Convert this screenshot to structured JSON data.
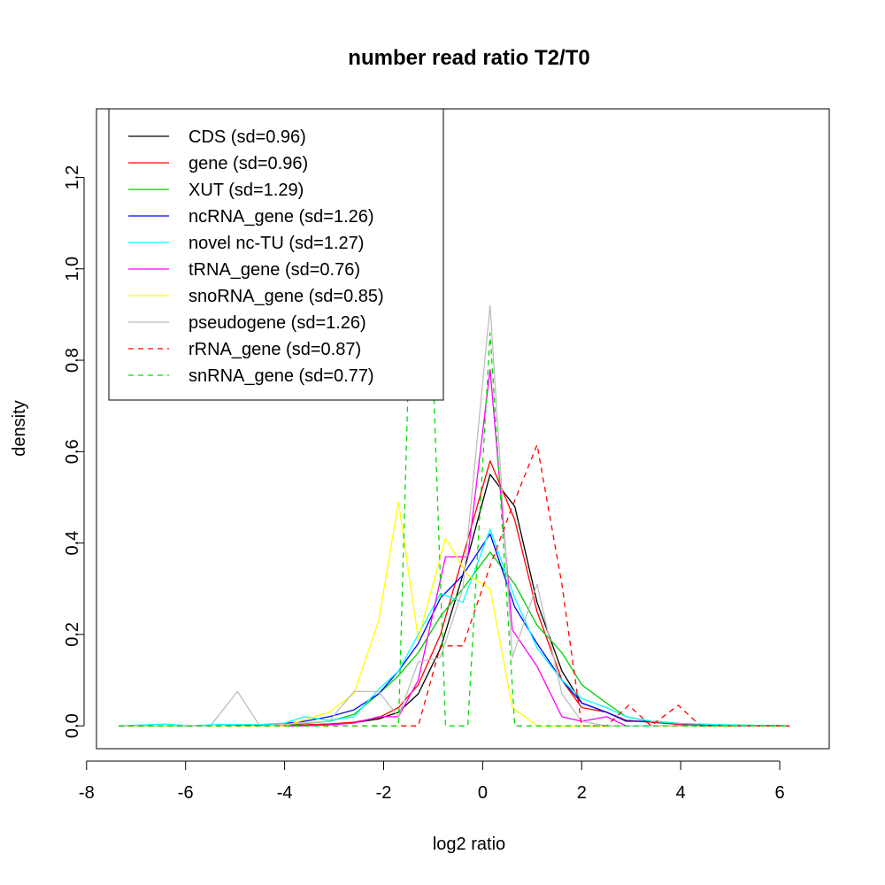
{
  "chart_data": {
    "type": "line",
    "title": "number read ratio T2/T0",
    "xlabel": "log2 ratio",
    "ylabel": "density",
    "xlim": [
      -7.8,
      7
    ],
    "ylim": [
      -0.05,
      1.35
    ],
    "xticks": [
      -8,
      -6,
      -4,
      -2,
      0,
      2,
      4,
      6
    ],
    "yticks": [
      0.0,
      0.2,
      0.4,
      0.6,
      0.8,
      1.0,
      1.2
    ],
    "xtick_labels": [
      "-8",
      "-6",
      "-4",
      "-2",
      "0",
      "2",
      "4",
      "6"
    ],
    "ytick_labels": [
      "0.0",
      "0.2",
      "0.4",
      "0.6",
      "0.8",
      "1.0",
      "1.2"
    ],
    "grid": false,
    "legend_position": "top-left",
    "series": [
      {
        "name": "CDS (sd=0.96)",
        "color": "#000000",
        "dash": "solid",
        "x": [
          -7.35,
          -5.4,
          -4.5,
          -3.6,
          -3.1,
          -2.6,
          -2.1,
          -1.7,
          -1.3,
          -0.85,
          -0.4,
          0.15,
          0.65,
          1.1,
          1.6,
          2.0,
          2.5,
          2.9,
          3.4,
          4.0,
          5.0,
          6.2
        ],
        "y": [
          0,
          0,
          0,
          0.002,
          0.004,
          0.007,
          0.015,
          0.03,
          0.07,
          0.17,
          0.33,
          0.55,
          0.48,
          0.27,
          0.12,
          0.05,
          0.03,
          0.012,
          0.008,
          0.003,
          0.001,
          0
        ]
      },
      {
        "name": "gene (sd=0.96)",
        "color": "#ff0000",
        "dash": "solid",
        "x": [
          -7.35,
          -5.4,
          -4.5,
          -3.6,
          -3.1,
          -2.6,
          -2.1,
          -1.7,
          -1.3,
          -0.85,
          -0.4,
          0.15,
          0.65,
          1.1,
          1.6,
          2.0,
          2.5,
          2.9,
          3.4,
          4.0,
          5.0,
          6.2
        ],
        "y": [
          0,
          0,
          0,
          0.002,
          0.004,
          0.008,
          0.018,
          0.04,
          0.09,
          0.2,
          0.37,
          0.58,
          0.45,
          0.25,
          0.1,
          0.04,
          0.03,
          0.012,
          0.008,
          0.003,
          0.001,
          0
        ]
      },
      {
        "name": "XUT (sd=1.29)",
        "color": "#00cc00",
        "dash": "solid",
        "x": [
          -7.35,
          -5.4,
          -4.5,
          -4.0,
          -3.6,
          -3.1,
          -2.6,
          -2.1,
          -1.7,
          -1.3,
          -0.85,
          -0.4,
          0.15,
          0.65,
          1.1,
          1.6,
          2.0,
          2.5,
          2.9,
          3.4,
          4.0,
          5.0,
          6.2
        ],
        "y": [
          0,
          0,
          0.002,
          0.003,
          0.005,
          0.01,
          0.025,
          0.07,
          0.11,
          0.16,
          0.24,
          0.3,
          0.38,
          0.31,
          0.22,
          0.16,
          0.09,
          0.05,
          0.02,
          0.01,
          0.005,
          0.002,
          0
        ]
      },
      {
        "name": "ncRNA_gene (sd=1.26)",
        "color": "#0000ff",
        "dash": "solid",
        "x": [
          -7.35,
          -5.4,
          -4.5,
          -4.0,
          -3.6,
          -3.1,
          -2.6,
          -2.1,
          -1.7,
          -1.3,
          -0.85,
          -0.4,
          0.15,
          0.65,
          1.1,
          1.6,
          2.0,
          2.5,
          2.9,
          3.4,
          4.0,
          5.0,
          6.2
        ],
        "y": [
          0,
          0,
          0.002,
          0.005,
          0.01,
          0.02,
          0.035,
          0.07,
          0.12,
          0.18,
          0.28,
          0.33,
          0.42,
          0.26,
          0.18,
          0.1,
          0.05,
          0.03,
          0.01,
          0.01,
          0.005,
          0.001,
          0
        ]
      },
      {
        "name": "novel nc-TU (sd=1.27)",
        "color": "#00ffff",
        "dash": "solid",
        "x": [
          -7.35,
          -6.4,
          -5.9,
          -5.4,
          -4.5,
          -4.0,
          -3.6,
          -3.1,
          -2.6,
          -2.1,
          -1.7,
          -1.3,
          -0.85,
          -0.4,
          0.15,
          0.65,
          1.1,
          1.6,
          2.0,
          2.5,
          2.9,
          3.4,
          4.0,
          5.0,
          6.2
        ],
        "y": [
          0,
          0.004,
          0,
          0.003,
          0.003,
          0.006,
          0.02,
          0.012,
          0.02,
          0.08,
          0.12,
          0.2,
          0.29,
          0.27,
          0.43,
          0.28,
          0.17,
          0.1,
          0.06,
          0.04,
          0.02,
          0.01,
          0.005,
          0.002,
          0
        ]
      },
      {
        "name": "tRNA_gene (sd=0.76)",
        "color": "#ff00ff",
        "dash": "solid",
        "x": [
          -7.35,
          -3.6,
          -3.1,
          -2.6,
          -2.1,
          -1.7,
          -1.3,
          -0.75,
          -0.3,
          0.15,
          0.6,
          1.1,
          1.6,
          2.0,
          2.5,
          2.9,
          3.4,
          6.2
        ],
        "y": [
          0,
          0,
          0.002,
          0.006,
          0.02,
          0.02,
          0.1,
          0.37,
          0.37,
          0.78,
          0.21,
          0.13,
          0.02,
          0.01,
          0.02,
          0,
          0,
          0
        ]
      },
      {
        "name": "snoRNA_gene (sd=0.85)",
        "color": "#ffff00",
        "dash": "solid",
        "x": [
          -7.35,
          -4.0,
          -3.1,
          -2.6,
          -2.1,
          -1.7,
          -1.3,
          -0.75,
          -0.3,
          0.15,
          0.6,
          1.1,
          6.2
        ],
        "y": [
          0,
          0,
          0.03,
          0.07,
          0.23,
          0.49,
          0.19,
          0.41,
          0.33,
          0.3,
          0.04,
          0,
          0
        ]
      },
      {
        "name": "pseudogene (sd=1.26)",
        "color": "#bebebe",
        "dash": "solid",
        "x": [
          -7.35,
          -5.5,
          -4.95,
          -4.5,
          -3.1,
          -2.6,
          -2.1,
          -1.7,
          -1.3,
          -0.85,
          -0.4,
          0.15,
          0.6,
          1.1,
          1.6,
          2.0,
          2.5,
          6.2
        ],
        "y": [
          0,
          0,
          0.075,
          0,
          0.01,
          0.075,
          0.075,
          0.02,
          0.14,
          0.15,
          0.3,
          0.92,
          0.15,
          0.31,
          0.07,
          0.01,
          0,
          0
        ]
      },
      {
        "name": "rRNA_gene (sd=0.87)",
        "color": "#ff0000",
        "dash": "dashed",
        "x": [
          -7.35,
          -1.3,
          -0.85,
          -0.4,
          0.15,
          0.6,
          1.1,
          1.6,
          2.0,
          2.5,
          2.95,
          3.4,
          3.95,
          4.4,
          6.2
        ],
        "y": [
          0,
          0,
          0.175,
          0.175,
          0.35,
          0.48,
          0.615,
          0.31,
          0,
          0,
          0.045,
          0,
          0.045,
          0,
          0
        ]
      },
      {
        "name": "snRNA_gene (sd=0.77)",
        "color": "#00dd00",
        "dash": "dashed",
        "x": [
          -7.35,
          -1.7,
          -1.5,
          -1.0,
          -0.75,
          -0.3,
          0.15,
          0.65,
          6.2
        ],
        "y": [
          0,
          0,
          0.77,
          0.77,
          0,
          0,
          0.86,
          0,
          0
        ]
      }
    ]
  }
}
